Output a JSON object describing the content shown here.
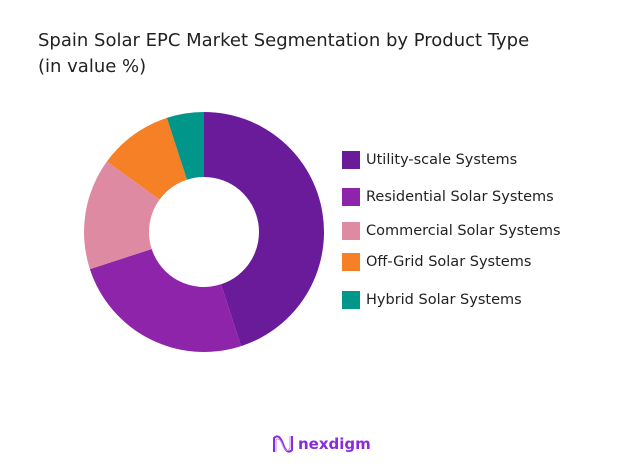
{
  "chart_data": {
    "type": "pie",
    "donut": true,
    "title": "Spain Solar EPC Market Segmentation by Product Type",
    "subtitle": "(in value %)",
    "categories": [
      "Utility-scale Systems",
      "Residential Solar Systems",
      "Commercial Solar Systems",
      "Off-Grid Solar Systems",
      "Hybrid Solar Systems"
    ],
    "values": [
      45,
      25,
      15,
      10,
      5
    ],
    "colors": [
      "#6a1b9a",
      "#8e24aa",
      "#df8aa3",
      "#f58025",
      "#00968a"
    ],
    "legend_position": "right"
  },
  "logo": {
    "text": "nexdigm",
    "color": "#8a2be2"
  }
}
